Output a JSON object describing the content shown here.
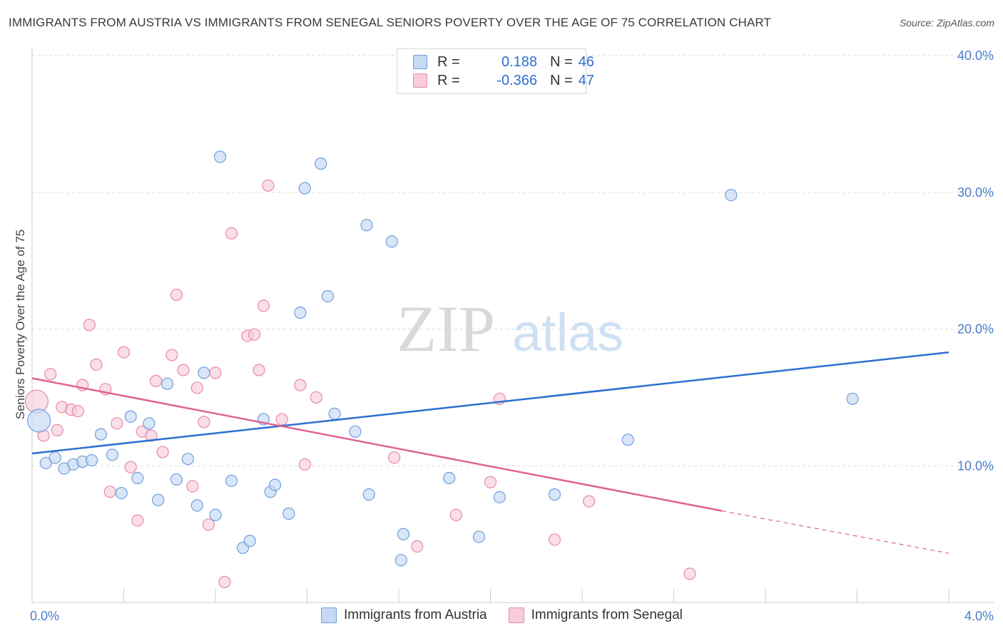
{
  "title": "IMMIGRANTS FROM AUSTRIA VS IMMIGRANTS FROM SENEGAL SENIORS POVERTY OVER THE AGE OF 75 CORRELATION CHART",
  "source": "Source: ZipAtlas.com",
  "watermark": {
    "zip": "ZIP",
    "atlas": "atlas"
  },
  "legend": {
    "rows": [
      {
        "r_label": "R =",
        "r_value": "0.188",
        "n_label": "N =",
        "n_value": "46"
      },
      {
        "r_label": "R =",
        "r_value": "-0.366",
        "n_label": "N =",
        "n_value": "47"
      }
    ]
  },
  "bottom_legend": {
    "austria": "Immigrants from Austria",
    "senegal": "Immigrants from Senegal"
  },
  "chart_data": {
    "type": "scatter",
    "title": "IMMIGRANTS FROM AUSTRIA VS IMMIGRANTS FROM SENEGAL SENIORS POVERTY OVER THE AGE OF 75 CORRELATION CHART",
    "xlabel": "",
    "ylabel": "Seniors Poverty Over the Age of 75",
    "xlim": [
      0,
      4
    ],
    "ylim": [
      0,
      40
    ],
    "x_tick_labels": [
      "0.0%",
      "4.0%"
    ],
    "y_ticks": [
      10,
      20,
      30,
      40
    ],
    "y_tick_labels": [
      "10.0%",
      "20.0%",
      "30.0%",
      "40.0%"
    ],
    "grid": true,
    "legend_position": "top-center",
    "colors": {
      "austria": "#6f9fde",
      "austria_fill": "#c5d9f3",
      "austria_line": "#2d6fd1",
      "senegal": "#e88aa8",
      "senegal_fill": "#f7ccdb",
      "senegal_line": "#e0648f"
    },
    "series": [
      {
        "name": "Immigrants from Austria",
        "r": 0.188,
        "n": 46,
        "trend": {
          "x0": 0.0,
          "y0": 10.9,
          "x1": 4.0,
          "y1": 18.3
        },
        "points": [
          {
            "x": 0.03,
            "y": 13.3,
            "big": true
          },
          {
            "x": 0.06,
            "y": 10.2
          },
          {
            "x": 0.1,
            "y": 10.6
          },
          {
            "x": 0.14,
            "y": 9.8
          },
          {
            "x": 0.18,
            "y": 10.1
          },
          {
            "x": 0.22,
            "y": 10.3
          },
          {
            "x": 0.26,
            "y": 10.4
          },
          {
            "x": 0.3,
            "y": 12.3
          },
          {
            "x": 0.35,
            "y": 10.8
          },
          {
            "x": 0.39,
            "y": 8.0
          },
          {
            "x": 0.43,
            "y": 13.6
          },
          {
            "x": 0.46,
            "y": 9.1
          },
          {
            "x": 0.51,
            "y": 13.1
          },
          {
            "x": 0.55,
            "y": 7.5
          },
          {
            "x": 0.59,
            "y": 16.0
          },
          {
            "x": 0.63,
            "y": 9.0
          },
          {
            "x": 0.68,
            "y": 10.5
          },
          {
            "x": 0.72,
            "y": 7.1
          },
          {
            "x": 0.75,
            "y": 16.8
          },
          {
            "x": 0.8,
            "y": 6.4
          },
          {
            "x": 0.82,
            "y": 32.6
          },
          {
            "x": 0.87,
            "y": 8.9
          },
          {
            "x": 0.92,
            "y": 4.0
          },
          {
            "x": 0.95,
            "y": 4.5
          },
          {
            "x": 1.01,
            "y": 13.4
          },
          {
            "x": 1.04,
            "y": 8.1
          },
          {
            "x": 1.06,
            "y": 8.6
          },
          {
            "x": 1.12,
            "y": 6.5
          },
          {
            "x": 1.17,
            "y": 21.2
          },
          {
            "x": 1.19,
            "y": 30.3
          },
          {
            "x": 1.26,
            "y": 32.1
          },
          {
            "x": 1.29,
            "y": 22.4
          },
          {
            "x": 1.32,
            "y": 13.8
          },
          {
            "x": 1.41,
            "y": 12.5
          },
          {
            "x": 1.46,
            "y": 27.6
          },
          {
            "x": 1.47,
            "y": 7.9
          },
          {
            "x": 1.57,
            "y": 26.4
          },
          {
            "x": 1.62,
            "y": 5.0
          },
          {
            "x": 1.61,
            "y": 3.1
          },
          {
            "x": 1.82,
            "y": 9.1
          },
          {
            "x": 1.95,
            "y": 4.8
          },
          {
            "x": 2.04,
            "y": 7.7
          },
          {
            "x": 2.28,
            "y": 7.9
          },
          {
            "x": 2.6,
            "y": 11.9
          },
          {
            "x": 3.05,
            "y": 29.8
          },
          {
            "x": 3.58,
            "y": 14.9
          }
        ]
      },
      {
        "name": "Immigrants from Senegal",
        "r": -0.366,
        "n": 47,
        "trend": {
          "x0": 0.0,
          "y0": 16.4,
          "x1": 3.01,
          "y1": 6.7
        },
        "trend_dashed": {
          "x0": 3.01,
          "y0": 6.7,
          "x1": 4.0,
          "y1": 3.6
        },
        "points": [
          {
            "x": 0.02,
            "y": 14.7,
            "big": true
          },
          {
            "x": 0.05,
            "y": 12.2
          },
          {
            "x": 0.08,
            "y": 16.7
          },
          {
            "x": 0.11,
            "y": 12.6
          },
          {
            "x": 0.13,
            "y": 14.3
          },
          {
            "x": 0.17,
            "y": 14.1
          },
          {
            "x": 0.2,
            "y": 14.0
          },
          {
            "x": 0.22,
            "y": 15.9
          },
          {
            "x": 0.25,
            "y": 20.3
          },
          {
            "x": 0.28,
            "y": 17.4
          },
          {
            "x": 0.32,
            "y": 15.6
          },
          {
            "x": 0.34,
            "y": 8.1
          },
          {
            "x": 0.37,
            "y": 13.1
          },
          {
            "x": 0.4,
            "y": 18.3
          },
          {
            "x": 0.43,
            "y": 9.9
          },
          {
            "x": 0.46,
            "y": 6.0
          },
          {
            "x": 0.48,
            "y": 12.5
          },
          {
            "x": 0.52,
            "y": 12.2
          },
          {
            "x": 0.54,
            "y": 16.2
          },
          {
            "x": 0.57,
            "y": 11.0
          },
          {
            "x": 0.61,
            "y": 18.1
          },
          {
            "x": 0.63,
            "y": 22.5
          },
          {
            "x": 0.66,
            "y": 17.0
          },
          {
            "x": 0.7,
            "y": 8.5
          },
          {
            "x": 0.72,
            "y": 15.7
          },
          {
            "x": 0.75,
            "y": 13.2
          },
          {
            "x": 0.77,
            "y": 5.7
          },
          {
            "x": 0.8,
            "y": 16.8
          },
          {
            "x": 0.84,
            "y": 1.5
          },
          {
            "x": 0.87,
            "y": 27.0
          },
          {
            "x": 0.94,
            "y": 19.5
          },
          {
            "x": 0.97,
            "y": 19.6
          },
          {
            "x": 0.99,
            "y": 17.0
          },
          {
            "x": 1.01,
            "y": 21.7
          },
          {
            "x": 1.03,
            "y": 30.5
          },
          {
            "x": 1.09,
            "y": 13.4
          },
          {
            "x": 1.17,
            "y": 15.9
          },
          {
            "x": 1.19,
            "y": 10.1
          },
          {
            "x": 1.24,
            "y": 15.0
          },
          {
            "x": 1.58,
            "y": 10.6
          },
          {
            "x": 1.68,
            "y": 4.1
          },
          {
            "x": 1.85,
            "y": 6.4
          },
          {
            "x": 2.0,
            "y": 8.8
          },
          {
            "x": 2.04,
            "y": 14.9
          },
          {
            "x": 2.28,
            "y": 4.6
          },
          {
            "x": 2.43,
            "y": 7.4
          },
          {
            "x": 2.87,
            "y": 2.1
          }
        ]
      }
    ]
  }
}
